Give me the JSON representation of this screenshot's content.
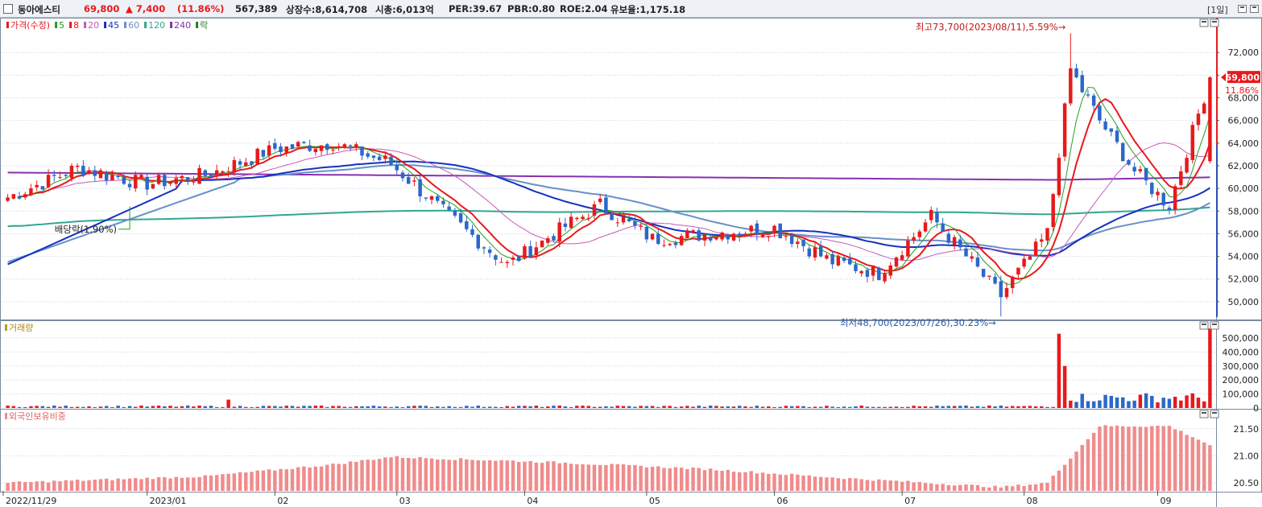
{
  "header": {
    "stock_name": "동아에스티",
    "price": "69,800",
    "change": "▲ 7,400",
    "change_pct": "(11.86%)",
    "volume": "567,389",
    "shares": "상장수:8,614,708",
    "market_cap": "시총:6,013억",
    "per": "PER:39.67",
    "pbr": "PBR:0.80",
    "roe": "ROE:2.04",
    "float_ratio": "유보율:1,175.18",
    "period_label": "[1일]"
  },
  "colors": {
    "up": "#e8191b",
    "down": "#2a68c9",
    "ma5": "#20a020",
    "ma20": "#c858b8",
    "ma8": "#e8191b",
    "ma45": "#1830c0",
    "ma60": "#6890c8",
    "ma120": "#30a890",
    "ma240": "#8830b0",
    "foreign": "#f08c8c",
    "grid": "#c8d4e4"
  },
  "price_panel": {
    "legend": [
      {
        "text": "가격(수정)",
        "color": "#e8191b"
      },
      {
        "text": "5",
        "color": "#20a020"
      },
      {
        "text": "8",
        "color": "#e8191b"
      },
      {
        "text": "20",
        "color": "#c858b8"
      },
      {
        "text": "45",
        "color": "#1830c0"
      },
      {
        "text": "60",
        "color": "#6890c8"
      },
      {
        "text": "120",
        "color": "#30a890"
      },
      {
        "text": "240",
        "color": "#8830b0"
      },
      {
        "text": "락",
        "color": "#208020"
      }
    ],
    "high_annotation": "최고73,700(2023/08/11),5.59%",
    "low_annotation": "최저48,700(2023/07/26),30.23%",
    "dividend_annotation": "배당락(1.90%)",
    "current_price_tag": "69,800",
    "current_pct_tag": "11.86%",
    "y_ticks": [
      "72,000",
      "70,000",
      "68,000",
      "66,000",
      "64,000",
      "62,000",
      "60,000",
      "58,000",
      "56,000",
      "54,000",
      "52,000",
      "50,000"
    ]
  },
  "volume_panel": {
    "legend": "거래량",
    "y_ticks": [
      "500,000",
      "400,000",
      "300,000",
      "200,000",
      "100,000",
      "0"
    ]
  },
  "foreign_panel": {
    "legend": "외국인보유비중",
    "y_ticks": [
      "21.50",
      "21.00",
      "20.50"
    ]
  },
  "x_axis": {
    "labels": [
      "2022/11/29",
      "2023/01",
      "02",
      "03",
      "04",
      "05",
      "06",
      "07",
      "08",
      "09"
    ]
  },
  "chart_data": {
    "type": "candlestick",
    "note_series": [
      "close"
    ],
    "close_anchors": [
      {
        "date": "2022/11/29",
        "close": 59200
      },
      {
        "date": "2022/12/15",
        "close": 61800
      },
      {
        "date": "2023/01/02",
        "close": 60400
      },
      {
        "date": "2023/01/16",
        "close": 61200
      },
      {
        "date": "2023/02/01",
        "close": 63500
      },
      {
        "date": "2023/02/15",
        "close": 64000
      },
      {
        "date": "2023/03/01",
        "close": 62200
      },
      {
        "date": "2023/03/15",
        "close": 57500
      },
      {
        "date": "2023/03/29",
        "close": 53200
      },
      {
        "date": "2023/04/10",
        "close": 56000
      },
      {
        "date": "2023/04/20",
        "close": 58500
      },
      {
        "date": "2023/05/03",
        "close": 55500
      },
      {
        "date": "2023/05/17",
        "close": 56000
      },
      {
        "date": "2023/06/01",
        "close": 56500
      },
      {
        "date": "2023/06/15",
        "close": 53500
      },
      {
        "date": "2023/06/27",
        "close": 52500
      },
      {
        "date": "2023/07/10",
        "close": 57500
      },
      {
        "date": "2023/07/26",
        "close": 50500
      },
      {
        "date": "2023/08/07",
        "close": 56000
      },
      {
        "date": "2023/08/11",
        "close": 70500
      },
      {
        "date": "2023/08/18",
        "close": 66000
      },
      {
        "date": "2023/08/28",
        "close": 61500
      },
      {
        "date": "2023/09/05",
        "close": 58500
      },
      {
        "date": "2023/09/14",
        "close": 69800
      }
    ],
    "price_range": [
      48500,
      74500
    ],
    "volume_range": [
      0,
      580000
    ],
    "volume_spikes": [
      {
        "date": "2023/08/09",
        "volume": 530000
      },
      {
        "date": "2023/08/10",
        "volume": 300000
      },
      {
        "date": "2023/09/14",
        "volume": 567389
      }
    ],
    "foreign_ratio_range": [
      20.35,
      21.75
    ],
    "foreign_ratio_anchors": [
      {
        "date": "2022/11/29",
        "value": 20.5
      },
      {
        "date": "2023/01/16",
        "value": 20.62
      },
      {
        "date": "2023/02/15",
        "value": 20.84
      },
      {
        "date": "2023/03/01",
        "value": 20.98
      },
      {
        "date": "2023/04/10",
        "value": 20.88
      },
      {
        "date": "2023/05/17",
        "value": 20.75
      },
      {
        "date": "2023/06/15",
        "value": 20.6
      },
      {
        "date": "2023/07/26",
        "value": 20.42
      },
      {
        "date": "2023/08/07",
        "value": 20.5
      },
      {
        "date": "2023/08/18",
        "value": 21.55
      },
      {
        "date": "2023/09/05",
        "value": 21.55
      },
      {
        "date": "2023/09/14",
        "value": 21.2
      }
    ]
  }
}
